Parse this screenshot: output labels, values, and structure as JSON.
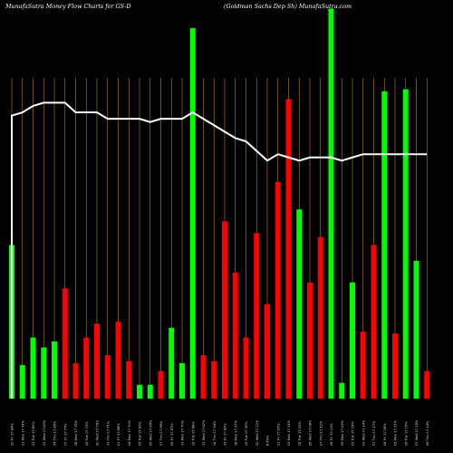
{
  "header": {
    "left_title": "MunafaSutra  Money Flow  Charts for GS-D",
    "right_title": "(Goldman  Sachs Dep Sh) MunafaSutra.com"
  },
  "colors": {
    "background": "#000000",
    "up": "#00ff00",
    "down": "#ff0000",
    "grid": "#b8860b",
    "price_line": "#ffffff"
  },
  "chart_data": {
    "type": "bar",
    "title": "MunafaSutra  Money Flow  Charts for GS-D",
    "subtitle": "(Goldman  Sachs Dep Sh) MunafaSutra.com",
    "categories": [
      "20 Fri 17.94%",
      "21 Mon 17.74%",
      "22 Tue 17.80%",
      "23 Wed 17.82%",
      "24 Thu 17.85%",
      "27 Fri 17.77%",
      "28 Mon 17.78%",
      "29 Tue 17.73%",
      "30 Wed 17.76%",
      "31 Thu 17.71%",
      "01 Fri 17.68%",
      "04 Mon 17.70%",
      "05 Tue 17.69%",
      "06 Wed 17.65%",
      "07 Thu 17.66%",
      "08 Fri 17.67%",
      "11 Mon 17.70%",
      "12 Tue 17.68%",
      "13 Wed 17.62%",
      "14 Thu 17.54%",
      "15 Fri 17.43%",
      "18 Mon 17.37%",
      "19 Tue 17.30%",
      "20 Wed 17.22%",
      "8.85%",
      "21 Fri 17.05%",
      "22 Mon 17.14%",
      "25 Tue 17.10%",
      "26 Wed 17.08%",
      "27 Thu 17.12%",
      "28 Fri 17.11%",
      "29 Mon 17.09%",
      "01 Tue 17.15%",
      "02 Wed 17.14%",
      "03 Thu 17.17%",
      "04 Fri 17.18%",
      "05 Mon 17.17%",
      "06 Tue 17.15%",
      "07 Wed 17.16%",
      "08 Thu 17.14%"
    ],
    "values": [
      39,
      8.5,
      15.5,
      13,
      14.5,
      28,
      9,
      15.5,
      19,
      11,
      19.5,
      9.5,
      3.5,
      3.5,
      7,
      18,
      9,
      94,
      11,
      9.5,
      45,
      32,
      15.5,
      42,
      24,
      55,
      76,
      48,
      29.5,
      41,
      99,
      4,
      29.5,
      17,
      39,
      78,
      16.5,
      78.5,
      35,
      7
    ],
    "directions": [
      "up",
      "up",
      "up",
      "up",
      "up",
      "down",
      "down",
      "down",
      "down",
      "down",
      "down",
      "down",
      "up",
      "up",
      "down",
      "up",
      "up",
      "up",
      "down",
      "down",
      "down",
      "down",
      "down",
      "down",
      "down",
      "down",
      "down",
      "up",
      "down",
      "down",
      "up",
      "up",
      "up",
      "down",
      "down",
      "up",
      "down",
      "up",
      "up",
      "down"
    ],
    "series": [
      {
        "values": [
          88,
          89,
          91,
          92,
          92,
          92,
          89,
          89,
          89,
          87,
          87,
          87,
          87,
          86,
          87,
          87,
          87,
          89,
          87,
          85,
          83,
          81,
          80,
          77,
          74,
          76,
          75,
          74,
          75,
          75,
          75,
          74,
          75,
          76,
          76,
          76,
          76,
          76,
          76,
          76
        ]
      }
    ],
    "xlabel": "",
    "ylabel": "",
    "ylim": [
      0,
      100
    ],
    "grid": true,
    "legend": "none"
  }
}
